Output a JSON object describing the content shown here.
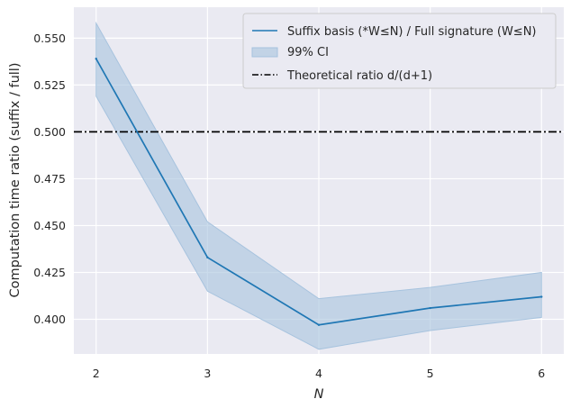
{
  "chart_data": {
    "type": "line",
    "xlabel": "N",
    "ylabel": "Computation time ratio (suffix / full)",
    "x": [
      2,
      3,
      4,
      5,
      6
    ],
    "series": [
      {
        "name": "Suffix basis (*W≤N) / Full signature (W≤N)",
        "values": [
          0.539,
          0.433,
          0.397,
          0.406,
          0.412
        ],
        "color": "#1f77b4"
      }
    ],
    "ci": {
      "name": "99% CI",
      "lower": [
        0.519,
        0.415,
        0.384,
        0.394,
        0.401
      ],
      "upper": [
        0.558,
        0.452,
        0.411,
        0.417,
        0.425
      ],
      "color": "#a7c3de"
    },
    "reference_line": {
      "name": "Theoretical ratio d/(d+1)",
      "value": 0.5,
      "color": "#000000",
      "style": "dashdot"
    },
    "xticks": [
      "2",
      "3",
      "4",
      "5",
      "6"
    ],
    "yticks": [
      "0.400",
      "0.425",
      "0.450",
      "0.475",
      "0.500",
      "0.525",
      "0.550"
    ],
    "xlim": [
      1.8,
      6.2
    ],
    "ylim": [
      0.3815,
      0.5665
    ],
    "grid": true,
    "background": "#eaeaf2",
    "legend_position": "top-right"
  }
}
